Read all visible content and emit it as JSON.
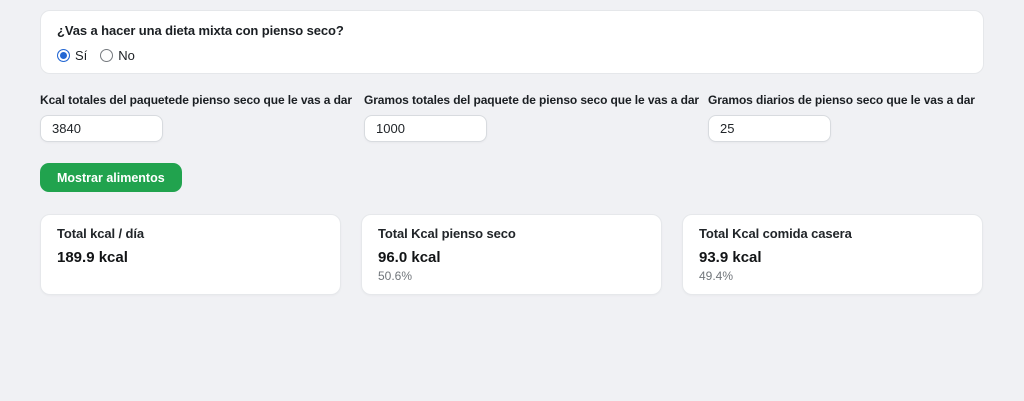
{
  "diet_question": {
    "label": "¿Vas a hacer una dieta mixta con pienso seco?",
    "options": [
      {
        "label": "Sí",
        "selected": true
      },
      {
        "label": "No",
        "selected": false
      }
    ]
  },
  "fields": [
    {
      "label": "Kcal totales del paquetede pienso seco que le vas a dar",
      "value": "3840"
    },
    {
      "label": "Gramos totales del paquete de pienso seco que le vas a dar",
      "value": "1000"
    },
    {
      "label": "Gramos diarios de pienso seco que le vas a dar",
      "value": "25"
    }
  ],
  "actions": {
    "show_foods_label": "Mostrar alimentos"
  },
  "results": [
    {
      "title": "Total kcal / día",
      "value": "189.9 kcal",
      "percent": ""
    },
    {
      "title": "Total Kcal pienso seco",
      "value": "96.0 kcal",
      "percent": "50.6%"
    },
    {
      "title": "Total Kcal comida casera",
      "value": "93.9 kcal",
      "percent": "49.4%"
    }
  ],
  "colors": {
    "page_bg": "#f0f1f4",
    "accent_green": "#21a34e",
    "radio_blue": "#2367d3",
    "muted_text": "#71767b"
  }
}
